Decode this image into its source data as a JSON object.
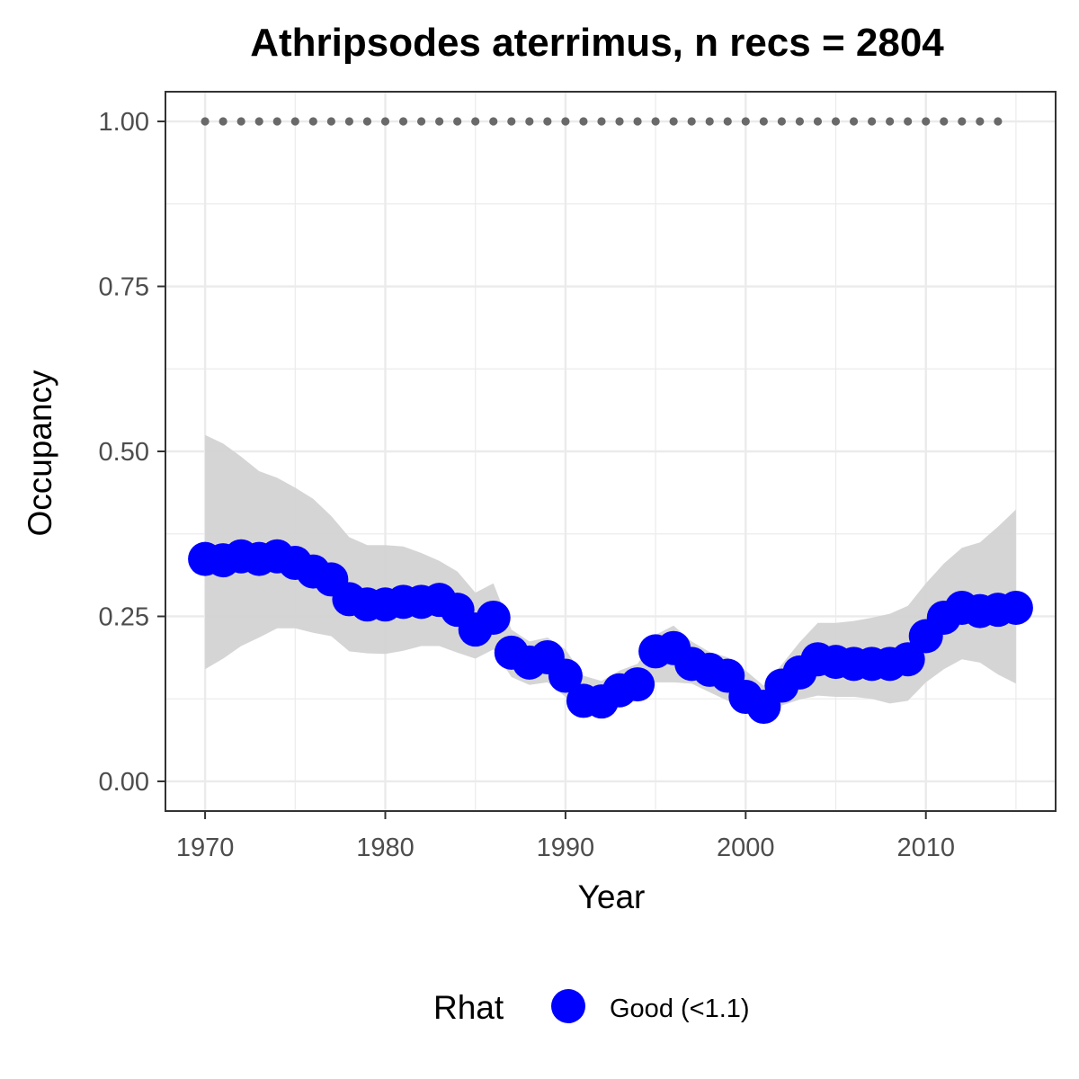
{
  "chart_data": {
    "type": "line",
    "title": "Athripsodes aterrimus, n recs = 2804",
    "xlabel": "Year",
    "ylabel": "Occupancy",
    "xlim": [
      1967.8,
      2017.2
    ],
    "ylim": [
      -0.045,
      1.045
    ],
    "x_ticks": [
      1970,
      1980,
      1990,
      2000,
      2010
    ],
    "x_tick_labels": [
      "1970",
      "1980",
      "1990",
      "2000",
      "2010"
    ],
    "y_ticks": [
      0,
      0.25,
      0.5,
      0.75,
      1.0
    ],
    "y_tick_labels": [
      "0.00",
      "0.25",
      "0.50",
      "0.75",
      "1.00"
    ],
    "grid": true,
    "legend": {
      "title": "Rhat",
      "position": "bottom",
      "entries": [
        {
          "label": "Good (<1.1)",
          "color": "#0000ff"
        }
      ]
    },
    "colors": {
      "points": "#0000ff",
      "ribbon": "#d3d3d3",
      "reference_dots": "#696969",
      "grid": "#ebebeb",
      "panel_border": "#333333"
    },
    "series": [
      {
        "name": "Good (<1.1)",
        "x": [
          1970,
          1971,
          1972,
          1973,
          1974,
          1975,
          1976,
          1977,
          1978,
          1979,
          1980,
          1981,
          1982,
          1983,
          1984,
          1985,
          1986,
          1987,
          1988,
          1989,
          1990,
          1991,
          1992,
          1993,
          1994,
          1995,
          1996,
          1997,
          1998,
          1999,
          2000,
          2001,
          2002,
          2003,
          2004,
          2005,
          2006,
          2007,
          2008,
          2009,
          2010,
          2011,
          2012,
          2013,
          2014,
          2015
        ],
        "y": [
          0.337,
          0.335,
          0.341,
          0.337,
          0.341,
          0.331,
          0.318,
          0.306,
          0.276,
          0.268,
          0.268,
          0.272,
          0.272,
          0.275,
          0.26,
          0.23,
          0.248,
          0.195,
          0.18,
          0.188,
          0.16,
          0.122,
          0.121,
          0.138,
          0.147,
          0.197,
          0.202,
          0.178,
          0.169,
          0.16,
          0.128,
          0.113,
          0.145,
          0.165,
          0.185,
          0.181,
          0.178,
          0.178,
          0.178,
          0.185,
          0.22,
          0.248,
          0.263,
          0.258,
          0.26,
          0.263
        ],
        "lower": [
          0.17,
          0.186,
          0.205,
          0.218,
          0.232,
          0.232,
          0.225,
          0.22,
          0.197,
          0.194,
          0.193,
          0.198,
          0.205,
          0.205,
          0.195,
          0.186,
          0.2,
          0.158,
          0.146,
          0.15,
          0.128,
          0.106,
          0.106,
          0.113,
          0.123,
          0.15,
          0.15,
          0.148,
          0.135,
          0.122,
          0.106,
          0.106,
          0.115,
          0.124,
          0.13,
          0.128,
          0.128,
          0.125,
          0.118,
          0.122,
          0.15,
          0.17,
          0.185,
          0.18,
          0.162,
          0.148
        ],
        "upper": [
          0.525,
          0.512,
          0.492,
          0.47,
          0.46,
          0.445,
          0.428,
          0.402,
          0.37,
          0.358,
          0.358,
          0.356,
          0.346,
          0.334,
          0.318,
          0.286,
          0.3,
          0.23,
          0.212,
          0.218,
          0.2,
          0.16,
          0.152,
          0.168,
          0.178,
          0.222,
          0.236,
          0.212,
          0.196,
          0.188,
          0.168,
          0.145,
          0.177,
          0.211,
          0.24,
          0.24,
          0.243,
          0.248,
          0.254,
          0.266,
          0.3,
          0.33,
          0.354,
          0.362,
          0.386,
          0.412
        ]
      },
      {
        "name": "",
        "x": [
          1970,
          1971,
          1972,
          1973,
          1974,
          1975,
          1976,
          1977,
          1978,
          1979,
          1980,
          1981,
          1982,
          1983,
          1984,
          1985,
          1986,
          1987,
          1988,
          1989,
          1990,
          1991,
          1992,
          1993,
          1994,
          1995,
          1996,
          1997,
          1998,
          1999,
          2000,
          2001,
          2002,
          2003,
          2004,
          2005,
          2006,
          2007,
          2008,
          2009,
          2010,
          2011,
          2012,
          2013,
          2014
        ],
        "y": [
          1,
          1,
          1,
          1,
          1,
          1,
          1,
          1,
          1,
          1,
          1,
          1,
          1,
          1,
          1,
          1,
          1,
          1,
          1,
          1,
          1,
          1,
          1,
          1,
          1,
          1,
          1,
          1,
          1,
          1,
          1,
          1,
          1,
          1,
          1,
          1,
          1,
          1,
          1,
          1,
          1,
          1,
          1,
          1,
          1
        ]
      }
    ]
  }
}
